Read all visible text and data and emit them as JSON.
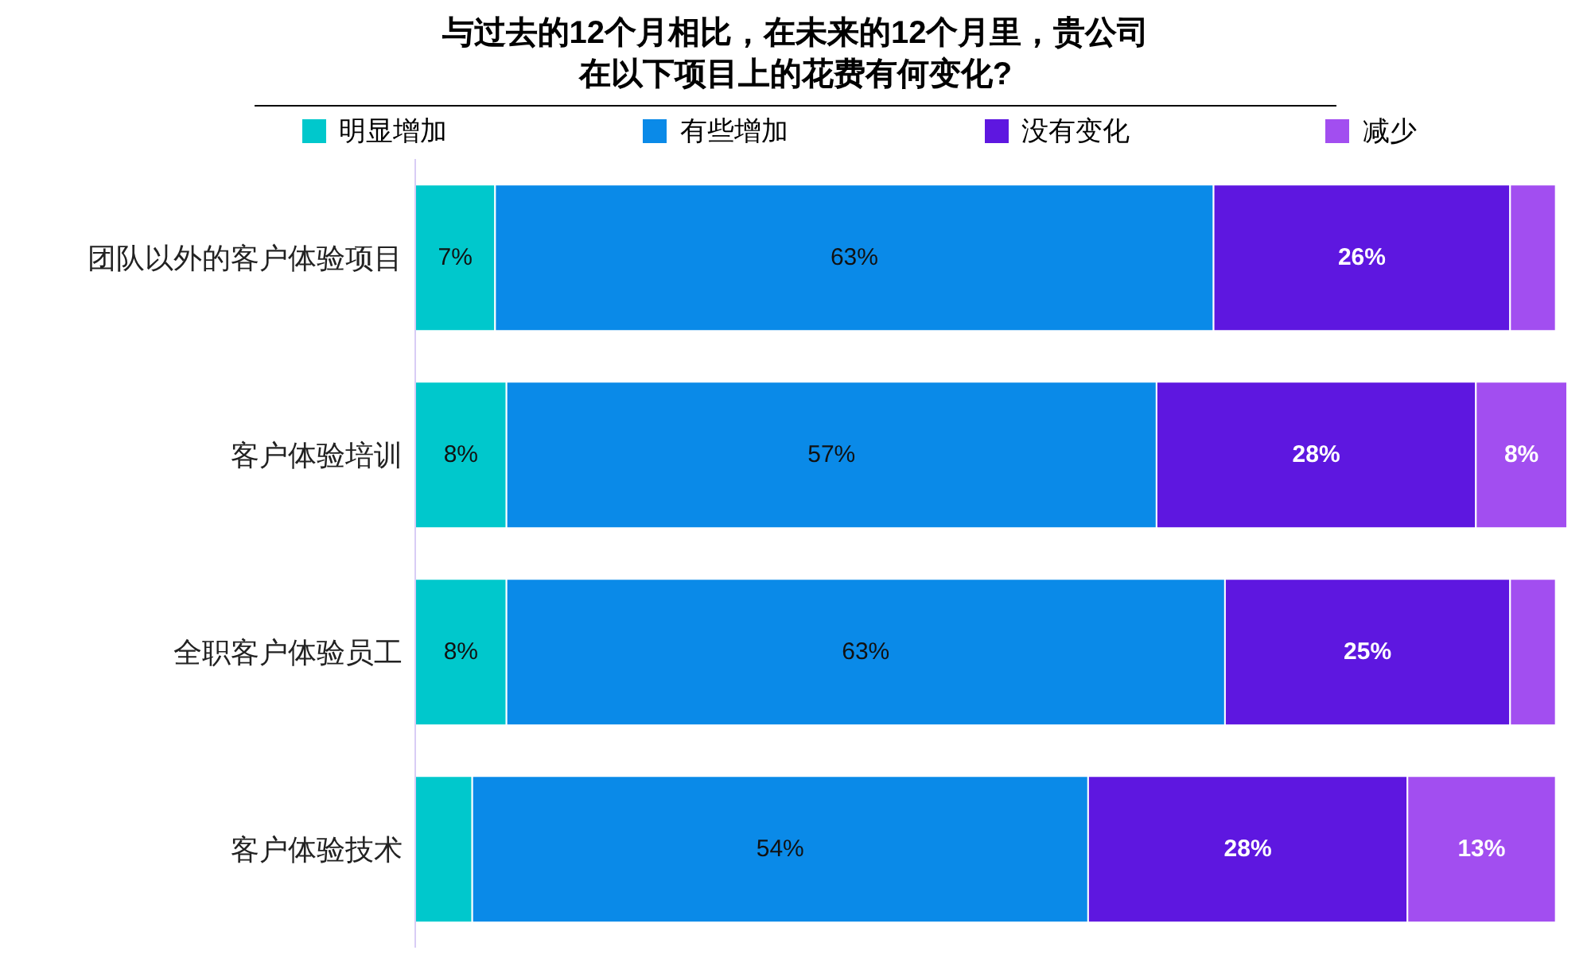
{
  "chart_data": {
    "type": "bar",
    "orientation": "horizontal",
    "stacked": true,
    "title": "与过去的12个月相比，在未来的12个月里，贵公司在以下项目上的花费有何变化?",
    "categories": [
      "团队以外的客户体验项目",
      "客户体验培训",
      "全职客户体验员工",
      "客户体验技术"
    ],
    "series": [
      {
        "name": "明显增加",
        "color": "#00c8cc",
        "values": [
          7,
          8,
          8,
          5
        ],
        "value_labels": [
          "7%",
          "8%",
          "8%",
          null
        ]
      },
      {
        "name": "有些增加",
        "color": "#0a8ae8",
        "values": [
          63,
          57,
          63,
          54
        ],
        "value_labels": [
          "63%",
          "57%",
          "63%",
          "54%"
        ]
      },
      {
        "name": "没有变化",
        "color": "#5e17e0",
        "values": [
          26,
          28,
          25,
          28
        ],
        "value_labels": [
          "26%",
          "28%",
          "25%",
          "28%"
        ]
      },
      {
        "name": "减少",
        "color": "#a24ef0",
        "values": [
          4,
          8,
          4,
          13
        ],
        "value_labels": [
          null,
          "8%",
          null,
          "13%"
        ]
      }
    ],
    "legend": "top"
  }
}
